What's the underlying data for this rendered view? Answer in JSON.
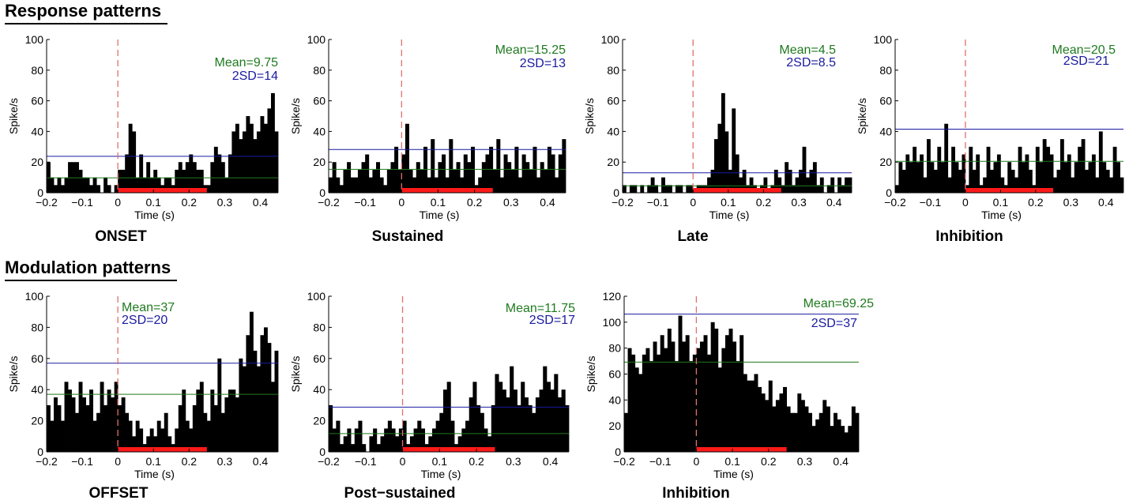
{
  "sections": {
    "response": "Response patterns",
    "modulation": "Modulation patterns"
  },
  "colors": {
    "bar": "#000000",
    "mean": "#1f7a1f",
    "sd": "#1a1aa0",
    "stimulus": "#ff1a1a",
    "onset": "#e07070"
  },
  "chart_data": [
    {
      "type": "bar",
      "section": "Response patterns",
      "title": "ONSET",
      "xlabel": "Time (s)",
      "ylabel": "Spike/s",
      "xlim": [
        -0.2,
        0.45
      ],
      "ylim": [
        0,
        100
      ],
      "xticks": [
        -0.2,
        -0.1,
        0,
        0.1,
        0.2,
        0.3,
        0.4
      ],
      "xtick_labels": [
        "−0.2",
        "−0.1",
        "0",
        "0.1",
        "0.2",
        "0.3",
        "0.4"
      ],
      "yticks": [
        0,
        20,
        40,
        60,
        80,
        100
      ],
      "bin_start": -0.2,
      "bin_width": 0.01,
      "values": [
        20,
        10,
        5,
        10,
        5,
        10,
        20,
        20,
        20,
        15,
        10,
        10,
        5,
        10,
        5,
        0,
        10,
        5,
        0,
        5,
        15,
        15,
        25,
        45,
        40,
        10,
        25,
        10,
        20,
        10,
        15,
        10,
        5,
        10,
        10,
        5,
        15,
        20,
        15,
        20,
        25,
        20,
        15,
        15,
        5,
        5,
        20,
        30,
        25,
        20,
        10,
        25,
        40,
        45,
        35,
        40,
        50,
        45,
        35,
        40,
        50,
        45,
        55,
        65,
        40,
        55
      ],
      "stimulus": [
        0,
        0.25
      ],
      "mean_label": "Mean=9.75",
      "mean_value": 9.75,
      "sd_label": "2SD=14",
      "sd_line": 23.75
    },
    {
      "type": "bar",
      "section": "Response patterns",
      "title": "Sustained",
      "xlabel": "Time (s)",
      "ylabel": "Spike/s",
      "xlim": [
        -0.2,
        0.45
      ],
      "ylim": [
        0,
        100
      ],
      "xticks": [
        -0.2,
        -0.1,
        0,
        0.1,
        0.2,
        0.3,
        0.4
      ],
      "xtick_labels": [
        "−0.2",
        "−0.1",
        "0",
        "0.1",
        "0.2",
        "0.3",
        "0.4"
      ],
      "yticks": [
        0,
        20,
        40,
        60,
        80,
        100
      ],
      "bin_start": -0.2,
      "bin_width": 0.01,
      "values": [
        10,
        20,
        10,
        5,
        15,
        20,
        10,
        10,
        15,
        20,
        25,
        10,
        15,
        20,
        10,
        5,
        15,
        20,
        30,
        15,
        25,
        45,
        15,
        10,
        20,
        15,
        30,
        10,
        35,
        10,
        20,
        25,
        10,
        35,
        15,
        20,
        10,
        25,
        20,
        30,
        5,
        10,
        20,
        25,
        30,
        15,
        35,
        10,
        25,
        20,
        15,
        30,
        10,
        25,
        20,
        15,
        30,
        10,
        20,
        15,
        30,
        25,
        10,
        25,
        35
      ],
      "stimulus": [
        0,
        0.25
      ],
      "mean_label": "Mean=15.25",
      "mean_value": 15.25,
      "sd_label": "2SD=13",
      "sd_line": 28.25
    },
    {
      "type": "bar",
      "section": "Response patterns",
      "title": "Late",
      "xlabel": "Time (s)",
      "ylabel": "Spike/s",
      "xlim": [
        -0.2,
        0.45
      ],
      "ylim": [
        0,
        100
      ],
      "xticks": [
        -0.2,
        -0.1,
        0,
        0.1,
        0.2,
        0.3,
        0.4
      ],
      "xtick_labels": [
        "−0.2",
        "−0.1",
        "0",
        "0.1",
        "0.2",
        "0.3",
        "0.4"
      ],
      "yticks": [
        0,
        20,
        40,
        60,
        80,
        100
      ],
      "bin_start": -0.2,
      "bin_width": 0.01,
      "values": [
        5,
        0,
        5,
        5,
        0,
        5,
        0,
        5,
        10,
        5,
        0,
        10,
        5,
        5,
        0,
        5,
        5,
        0,
        5,
        5,
        0,
        5,
        5,
        5,
        10,
        15,
        35,
        45,
        65,
        40,
        15,
        55,
        25,
        10,
        15,
        5,
        10,
        5,
        0,
        5,
        10,
        0,
        5,
        15,
        10,
        5,
        20,
        15,
        5,
        10,
        15,
        30,
        10,
        15,
        20,
        5,
        10,
        0,
        5,
        10,
        0,
        10,
        5,
        10,
        10
      ],
      "stimulus": [
        0,
        0.25
      ],
      "mean_label": "Mean=4.5",
      "mean_value": 4.5,
      "sd_label": "2SD=8.5",
      "sd_line": 13
    },
    {
      "type": "bar",
      "section": "Response patterns",
      "title": "Inhibition",
      "xlabel": "Time (s)",
      "ylabel": "Spike/s",
      "xlim": [
        -0.2,
        0.45
      ],
      "ylim": [
        0,
        100
      ],
      "xticks": [
        -0.2,
        -0.1,
        0,
        0.1,
        0.2,
        0.3,
        0.4
      ],
      "xtick_labels": [
        "−0.2",
        "−0.1",
        "0",
        "0.1",
        "0.2",
        "0.3",
        "0.4"
      ],
      "yticks": [
        0,
        20,
        40,
        60,
        80,
        100
      ],
      "bin_start": -0.2,
      "bin_width": 0.01,
      "values": [
        5,
        20,
        15,
        25,
        20,
        30,
        20,
        25,
        10,
        35,
        20,
        15,
        30,
        20,
        45,
        10,
        30,
        20,
        15,
        25,
        5,
        30,
        15,
        25,
        5,
        10,
        30,
        15,
        20,
        25,
        10,
        5,
        20,
        15,
        10,
        30,
        20,
        25,
        15,
        5,
        30,
        20,
        35,
        30,
        25,
        10,
        15,
        35,
        20,
        25,
        10,
        20,
        30,
        35,
        15,
        20,
        25,
        10,
        40,
        20,
        15,
        10,
        30,
        20,
        10
      ],
      "stimulus": [
        0,
        0.25
      ],
      "mean_label": "Mean=20.5",
      "mean_value": 20.5,
      "sd_label": "2SD=21",
      "sd_line": 41.5
    },
    {
      "type": "bar",
      "section": "Modulation patterns",
      "title": "OFFSET",
      "xlabel": "Time (s)",
      "ylabel": "Spike/s",
      "xlim": [
        -0.2,
        0.45
      ],
      "ylim": [
        0,
        100
      ],
      "xticks": [
        -0.2,
        -0.1,
        0,
        0.1,
        0.2,
        0.3,
        0.4
      ],
      "xtick_labels": [
        "−0.2",
        "−0.1",
        "0",
        "0.1",
        "0.2",
        "0.3",
        "0.4"
      ],
      "yticks": [
        0,
        20,
        40,
        60,
        80,
        100
      ],
      "bin_start": -0.2,
      "bin_width": 0.01,
      "values": [
        30,
        20,
        35,
        30,
        20,
        45,
        40,
        35,
        25,
        45,
        35,
        30,
        40,
        20,
        25,
        45,
        30,
        40,
        35,
        45,
        30,
        35,
        25,
        20,
        10,
        20,
        15,
        5,
        10,
        15,
        10,
        20,
        15,
        25,
        10,
        5,
        15,
        30,
        40,
        20,
        15,
        30,
        40,
        45,
        25,
        20,
        40,
        30,
        60,
        25,
        35,
        40,
        40,
        35,
        60,
        55,
        75,
        90,
        65,
        55,
        75,
        80,
        70,
        45,
        65,
        50
      ],
      "stimulus": [
        0,
        0.25
      ],
      "mean_label": "Mean=37",
      "mean_value": 37,
      "sd_label": "2SD=20",
      "sd_line": 57
    },
    {
      "type": "bar",
      "section": "Modulation patterns",
      "title": "Post−sustained",
      "xlabel": "Time (s)",
      "ylabel": "Spike/s",
      "xlim": [
        -0.2,
        0.45
      ],
      "ylim": [
        0,
        100
      ],
      "xticks": [
        -0.2,
        -0.1,
        0,
        0.1,
        0.2,
        0.3,
        0.4
      ],
      "xtick_labels": [
        "−0.2",
        "−0.1",
        "0",
        "0.1",
        "0.2",
        "0.3",
        "0.4"
      ],
      "yticks": [
        0,
        20,
        40,
        60,
        80,
        100
      ],
      "bin_start": -0.2,
      "bin_width": 0.01,
      "values": [
        30,
        15,
        20,
        5,
        10,
        15,
        5,
        15,
        20,
        5,
        0,
        10,
        15,
        5,
        10,
        15,
        20,
        15,
        10,
        15,
        20,
        5,
        10,
        15,
        20,
        15,
        5,
        10,
        15,
        20,
        25,
        40,
        45,
        20,
        5,
        10,
        15,
        20,
        35,
        45,
        30,
        25,
        15,
        10,
        30,
        50,
        45,
        40,
        35,
        55,
        40,
        30,
        45,
        35,
        30,
        25,
        35,
        40,
        55,
        45,
        40,
        50,
        35,
        40,
        30
      ],
      "stimulus": [
        0,
        0.25
      ],
      "mean_label": "Mean=11.75",
      "mean_value": 11.75,
      "sd_label": "2SD=17",
      "sd_line": 28.75
    },
    {
      "type": "bar",
      "section": "Modulation patterns",
      "title": "Inhibition",
      "xlabel": "Time (s)",
      "ylabel": "Spike/s",
      "xlim": [
        -0.2,
        0.45
      ],
      "ylim": [
        0,
        120
      ],
      "xticks": [
        -0.2,
        -0.1,
        0,
        0.1,
        0.2,
        0.3,
        0.4
      ],
      "xtick_labels": [
        "−0.2",
        "−0.1",
        "0",
        "0.1",
        "0.2",
        "0.3",
        "0.4"
      ],
      "yticks": [
        0,
        20,
        40,
        60,
        80,
        100,
        120
      ],
      "bin_start": -0.2,
      "bin_width": 0.01,
      "values": [
        30,
        80,
        75,
        65,
        60,
        75,
        80,
        70,
        85,
        75,
        90,
        80,
        95,
        85,
        70,
        105,
        85,
        90,
        70,
        75,
        80,
        85,
        90,
        75,
        100,
        95,
        65,
        80,
        90,
        95,
        85,
        70,
        90,
        60,
        55,
        55,
        60,
        50,
        45,
        40,
        55,
        35,
        40,
        45,
        50,
        35,
        30,
        30,
        45,
        40,
        35,
        30,
        20,
        25,
        30,
        40,
        35,
        20,
        30,
        25,
        20,
        15,
        20,
        35,
        30,
        15,
        20,
        35
      ],
      "stimulus": [
        0,
        0.25
      ],
      "mean_label": "Mean=69.25",
      "mean_value": 69.25,
      "sd_label": "2SD=37",
      "sd_line": 106.25
    }
  ]
}
